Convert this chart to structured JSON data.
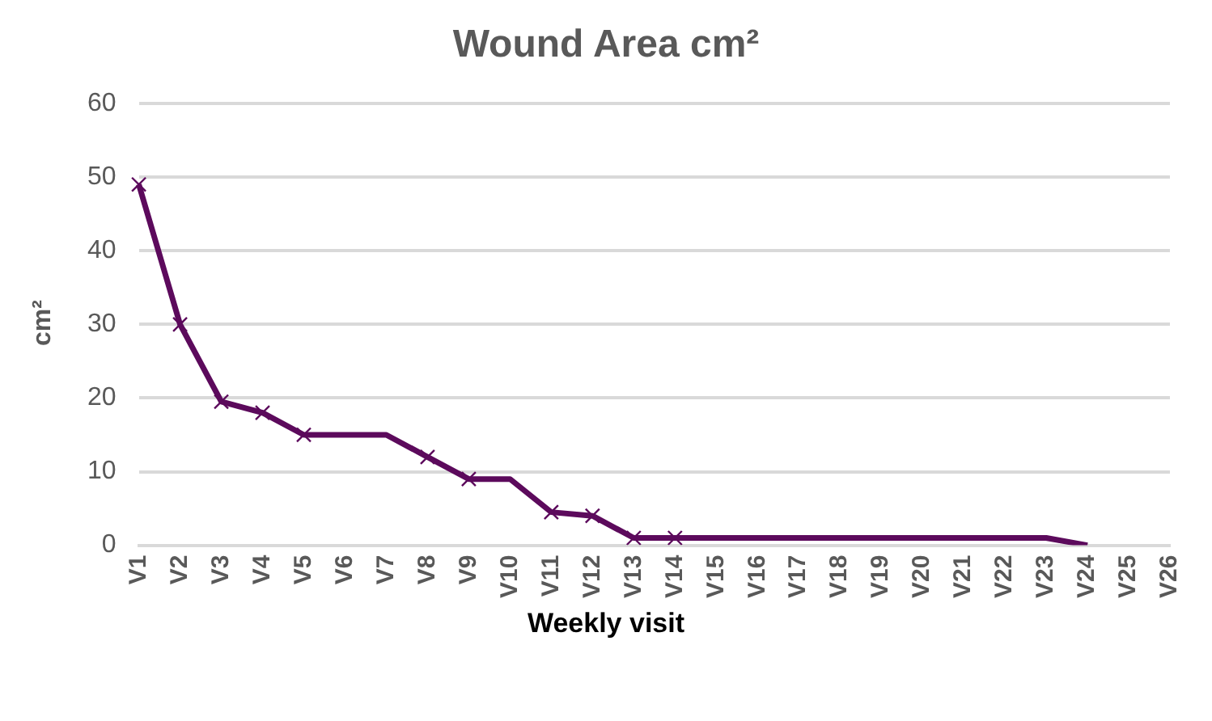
{
  "chart_data": {
    "type": "line",
    "title": "Wound Area cm²",
    "xlabel": "Weekly visit",
    "ylabel": "cm²",
    "categories": [
      "V1",
      "V2",
      "V3",
      "V4",
      "V5",
      "V6",
      "V7",
      "V8",
      "V9",
      "V10",
      "V11",
      "V12",
      "V13",
      "V14",
      "V15",
      "V16",
      "V17",
      "V18",
      "V19",
      "V20",
      "V21",
      "V22",
      "V23",
      "V24",
      "V25",
      "V26"
    ],
    "series": [
      {
        "color": "#5c0a5c",
        "marker": "none",
        "values": [
          49,
          30,
          19.5,
          18,
          15,
          15,
          15,
          12,
          9,
          9,
          4.5,
          4,
          1,
          1,
          1,
          1,
          1,
          1,
          1,
          1,
          1,
          1,
          1,
          0,
          null,
          null
        ]
      },
      {
        "type": "scatter",
        "color": "#5c0a5c",
        "marker": "cross",
        "x": [
          "V1",
          "V2",
          "V3",
          "V4",
          "V5",
          "V8",
          "V9",
          "V11",
          "V12",
          "V13",
          "V14"
        ],
        "values": [
          49,
          30,
          19.5,
          18,
          15,
          12,
          9,
          4.5,
          4,
          1,
          1
        ]
      }
    ],
    "ylim": [
      0,
      60
    ],
    "yticks": [
      0,
      10,
      20,
      30,
      40,
      50,
      60
    ],
    "grid": "y",
    "legend": false
  }
}
